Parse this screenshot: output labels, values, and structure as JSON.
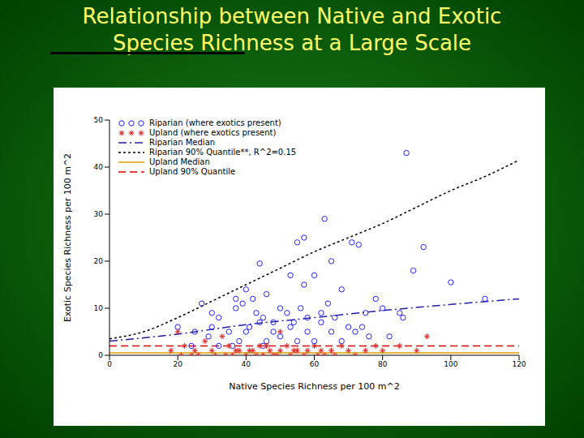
{
  "chart_data": {
    "type": "scatter",
    "title": "Relationship between Native and Exotic Species Richness at a Large Scale",
    "x_label": "Native Species Richness per 100 m^2",
    "y_label": "Exotic Species Richness per 100 m^2",
    "xlim": [
      0,
      120
    ],
    "ylim": [
      0,
      50
    ],
    "xticks": [
      0,
      20,
      40,
      60,
      80,
      100,
      120
    ],
    "yticks": [
      0,
      10,
      20,
      30,
      40,
      50
    ],
    "legend": "upper left",
    "series": [
      {
        "name": "Riparian (where exotics present)",
        "type": "scatter",
        "marker": "circle",
        "color": "#2020ff",
        "x": [
          87,
          63,
          57,
          55,
          71,
          73,
          92,
          65,
          44,
          89,
          60,
          53,
          100,
          57,
          40,
          68,
          46,
          78,
          110,
          37,
          42,
          64,
          27,
          37,
          56,
          80,
          39,
          50,
          52,
          75,
          62,
          85,
          32,
          45,
          44,
          54,
          48,
          20,
          30,
          70,
          86,
          62,
          25,
          35,
          41,
          53,
          58,
          65,
          72,
          76,
          82,
          29,
          38,
          46,
          50,
          36,
          55,
          60,
          68,
          45,
          32,
          24,
          40,
          74,
          48,
          58,
          66,
          30,
          43
        ],
        "values": [
          43,
          29,
          25,
          24,
          24,
          23.5,
          23,
          20,
          19.5,
          18,
          17,
          17,
          15.5,
          15,
          14,
          14,
          13,
          12,
          12,
          12,
          12,
          11,
          11,
          10,
          10,
          10,
          11,
          10,
          9,
          9,
          9,
          9,
          8,
          8,
          7,
          7,
          7,
          6,
          6,
          6,
          8,
          7,
          5,
          5,
          6,
          6,
          5,
          5,
          5,
          4,
          4,
          4,
          3,
          3,
          4,
          2,
          3,
          3,
          3,
          2,
          2,
          2,
          5,
          6,
          5,
          8,
          8,
          9,
          9
        ]
      },
      {
        "name": "Upland (where exotics present)",
        "type": "scatter",
        "marker": "asterisk",
        "color": "#e02020",
        "x": [
          20,
          33,
          50,
          93,
          22,
          25,
          28,
          30,
          35,
          38,
          40,
          42,
          44,
          45,
          47,
          48,
          50,
          52,
          53,
          55,
          57,
          58,
          60,
          62,
          63,
          65,
          66,
          68,
          70,
          72,
          75,
          78,
          80,
          85,
          90,
          24,
          26,
          31,
          34,
          36,
          18,
          21,
          46,
          54,
          41,
          37,
          43,
          49,
          61
        ],
        "values": [
          5,
          4,
          5,
          4,
          2,
          1,
          3,
          1,
          2,
          1,
          0,
          1,
          2,
          0,
          1,
          0,
          1,
          2,
          0,
          1,
          0,
          1,
          2,
          1,
          0,
          1,
          0,
          2,
          1,
          0,
          1,
          2,
          1,
          2,
          1,
          0,
          0,
          0,
          0,
          0,
          1,
          0,
          2,
          1,
          1,
          1,
          0,
          0,
          0
        ]
      },
      {
        "name": "Riparian Median",
        "type": "line",
        "line_style": "dashdot",
        "color": "#2020a0",
        "x": [
          0,
          20,
          40,
          60,
          80,
          100,
          120
        ],
        "values": [
          3,
          4.5,
          6.5,
          8,
          9.5,
          10.8,
          12
        ]
      },
      {
        "name": "Riparian 90% Quantile**, R^2=0.15",
        "type": "line",
        "line_style": "dotted",
        "color": "#000000",
        "x": [
          0,
          10,
          20,
          30,
          40,
          50,
          60,
          70,
          80,
          90,
          100,
          110,
          120
        ],
        "values": [
          3.5,
          5,
          8,
          11.5,
          15,
          18.5,
          22,
          25,
          28,
          31.5,
          35,
          38,
          41.5
        ]
      },
      {
        "name": "Upland Median",
        "type": "line",
        "line_style": "solid",
        "color": "#e0a000",
        "x": [
          0,
          120
        ],
        "values": [
          0.5,
          0.5
        ]
      },
      {
        "name": "Upland 90% Quantile",
        "type": "line",
        "line_style": "dashed",
        "color": "#e00000",
        "x": [
          0,
          120
        ],
        "values": [
          2,
          2
        ]
      }
    ]
  }
}
